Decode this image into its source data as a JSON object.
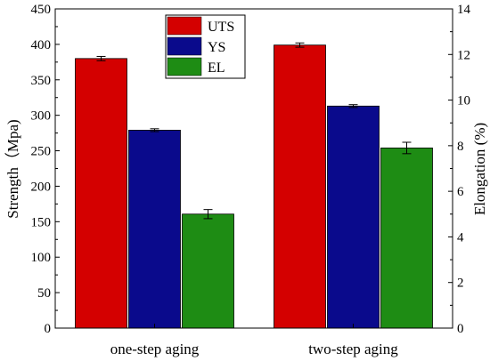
{
  "chart_data": {
    "type": "bar",
    "title": "",
    "categories": [
      "one-step aging",
      "two-step aging"
    ],
    "series": [
      {
        "name": "UTS",
        "axis": "left",
        "color": "#d40000",
        "values": [
          380,
          399
        ],
        "errors": [
          3,
          3
        ]
      },
      {
        "name": "YS",
        "axis": "left",
        "color": "#0a0a8c",
        "values": [
          279,
          313
        ],
        "errors": [
          2,
          2
        ]
      },
      {
        "name": "EL",
        "axis": "right",
        "color": "#1e8c14",
        "values": [
          5.0,
          7.9
        ],
        "errors": [
          0.2,
          0.25
        ]
      }
    ],
    "ylabel": "Strength（Mpa)",
    "ylabel_right": "Elongation (%)",
    "ylim": [
      0,
      450
    ],
    "ylim_right": [
      0,
      14
    ],
    "yticks": [
      0,
      50,
      100,
      150,
      200,
      250,
      300,
      350,
      400,
      450
    ],
    "yticks_right": [
      0,
      2,
      4,
      6,
      8,
      10,
      12,
      14
    ],
    "legend_position": "top-center",
    "grid": false
  }
}
